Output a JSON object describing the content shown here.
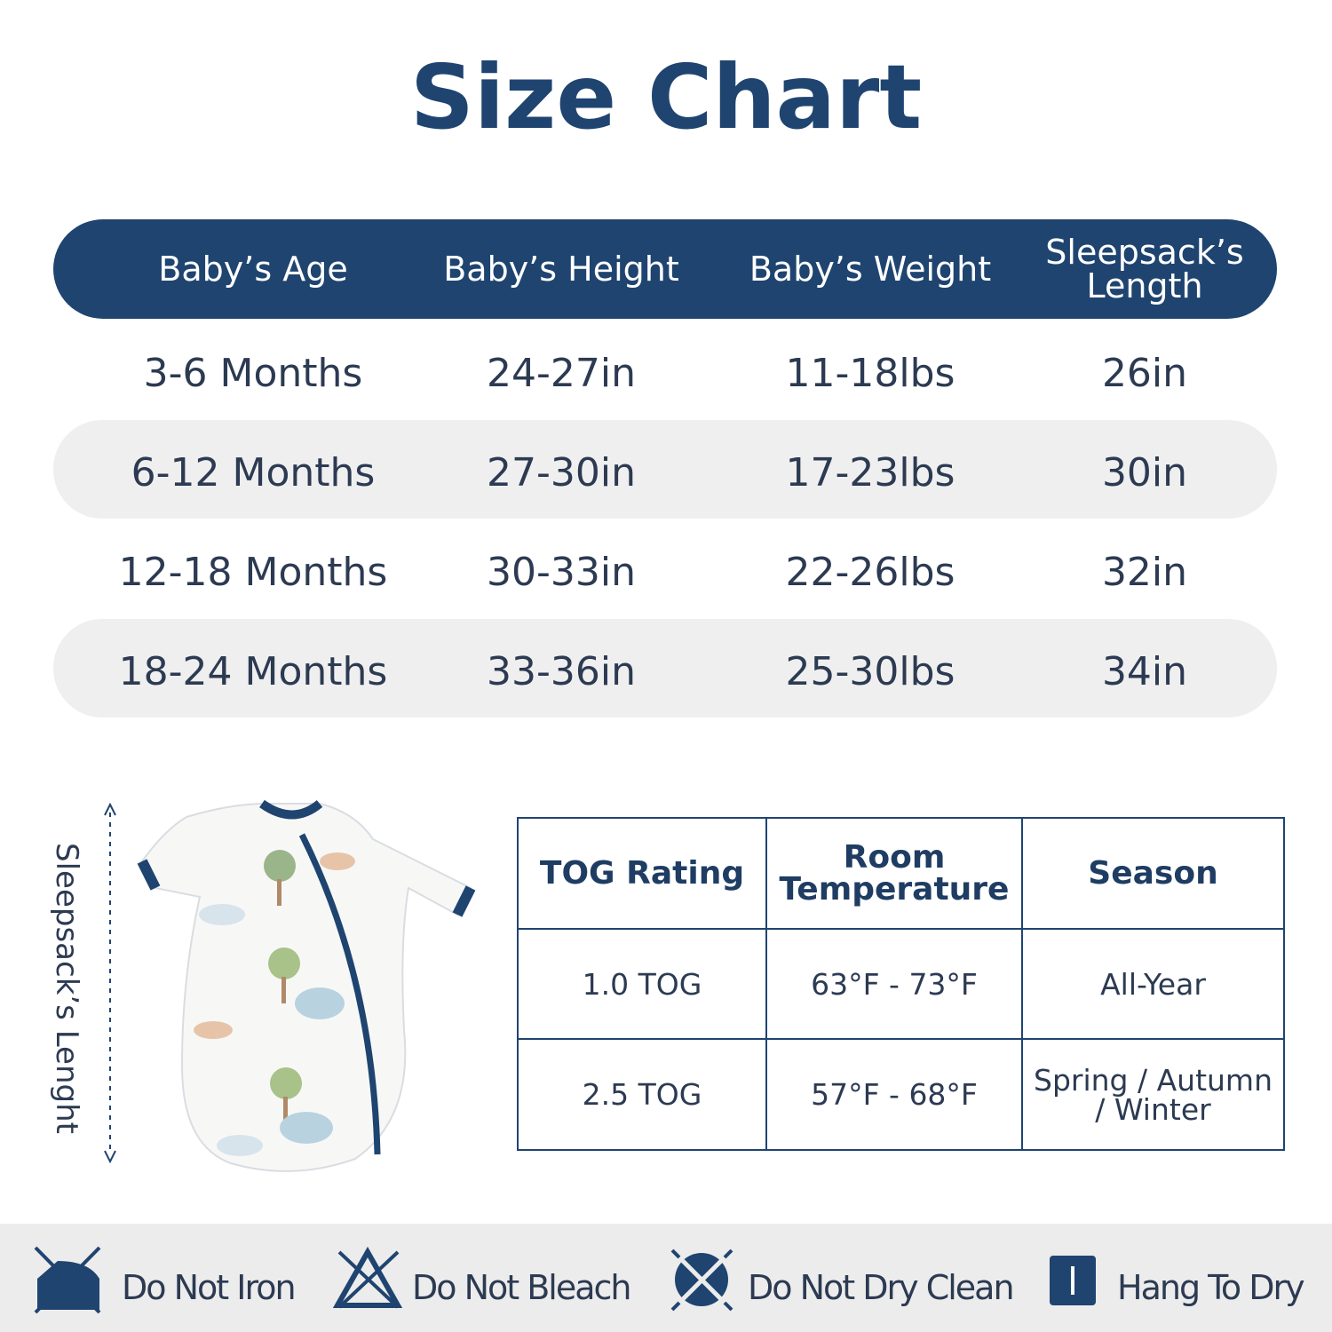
{
  "title": "Size Chart",
  "size_table": {
    "headers": [
      "Baby’s Age",
      "Baby’s Height",
      "Baby’s Weight",
      "Sleepsack’s Length"
    ],
    "rows": [
      [
        "3-6 Months",
        "24-27in",
        "11-18lbs",
        "26in"
      ],
      [
        "6-12 Months",
        "27-30in",
        "17-23lbs",
        "30in"
      ],
      [
        "12-18 Months",
        "30-33in",
        "22-26lbs",
        "32in"
      ],
      [
        "18-24 Months",
        "33-36in",
        "25-30lbs",
        "34in"
      ]
    ]
  },
  "length_label": "Sleepsack’s Lenght",
  "tog_table": {
    "headers": [
      "TOG Rating",
      "Room Temperature",
      "Season"
    ],
    "rows": [
      [
        "1.0 TOG",
        "63°F - 73°F",
        "All-Year"
      ],
      [
        "2.5 TOG",
        "57°F - 68°F",
        "Spring / Autumn / Winter"
      ]
    ]
  },
  "care": [
    "Do Not Iron",
    "Do Not Bleach",
    "Do Not Dry Clean",
    "Hang To Dry"
  ]
}
